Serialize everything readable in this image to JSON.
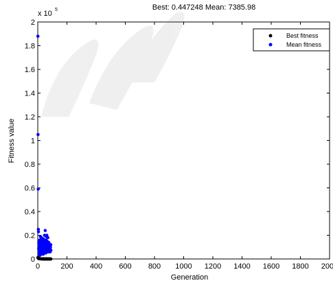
{
  "chart_data": {
    "type": "scatter",
    "title": "Best: 0.447248 Mean: 7385.98",
    "xlabel": "Generation",
    "ylabel": "Fitness value",
    "y_multiplier": "x 10",
    "y_exponent": "5",
    "xlim": [
      0,
      2000
    ],
    "ylim": [
      0,
      200000
    ],
    "x_ticks": [
      "0",
      "200",
      "400",
      "600",
      "800",
      "1000",
      "1200",
      "1400",
      "1600",
      "1800",
      "2000"
    ],
    "y_ticks": [
      "0",
      "0.2",
      "0.4",
      "0.6",
      "0.8",
      "1",
      "1.2",
      "1.4",
      "1.6",
      "1.8",
      "2"
    ],
    "legend": {
      "placement": "top-right"
    },
    "series": [
      {
        "name": "Best fitness",
        "color": "#000000",
        "x": [
          1,
          2,
          3,
          4,
          5,
          6,
          7,
          8,
          9,
          10,
          12,
          14,
          16,
          18,
          20,
          22,
          24,
          26,
          28,
          30,
          32,
          34,
          36,
          38,
          40,
          42,
          44,
          46,
          48,
          50,
          52,
          54,
          56,
          58,
          60,
          62,
          64,
          66,
          68,
          70,
          72,
          74,
          76,
          78,
          80,
          82,
          84,
          86,
          88,
          90
        ],
        "y": [
          1200,
          900,
          700,
          600,
          500,
          400,
          350,
          300,
          260,
          230,
          200,
          180,
          160,
          140,
          120,
          100,
          90,
          80,
          70,
          60,
          50,
          45,
          40,
          35,
          30,
          25,
          20,
          18,
          16,
          14,
          12,
          10,
          9,
          8,
          7,
          6,
          5,
          4,
          3,
          2.5,
          2,
          1.8,
          1.5,
          1.2,
          1,
          0.9,
          0.8,
          0.6,
          0.5,
          0.447
        ]
      },
      {
        "name": "Mean fitness",
        "color": "#0000ff",
        "x": [
          1,
          2,
          3,
          4,
          5,
          6,
          7,
          8,
          9,
          10,
          11,
          12,
          13,
          14,
          15,
          16,
          17,
          18,
          19,
          20,
          21,
          22,
          23,
          24,
          25,
          26,
          27,
          28,
          29,
          30,
          31,
          32,
          33,
          34,
          35,
          36,
          37,
          38,
          39,
          40,
          41,
          42,
          43,
          44,
          45,
          46,
          47,
          48,
          49,
          50,
          51,
          52,
          53,
          54,
          55,
          56,
          57,
          58,
          59,
          60,
          61,
          62,
          63,
          64,
          65,
          66,
          67,
          68,
          69,
          70,
          71,
          72,
          73,
          74,
          75,
          76,
          77,
          78,
          79,
          80,
          81,
          82,
          83,
          84,
          85,
          86,
          87,
          88,
          89,
          90
        ],
        "y": [
          188000,
          105000,
          59000,
          25000,
          23000,
          9000,
          14000,
          6000,
          11000,
          4000,
          12000,
          7000,
          16000,
          3000,
          9000,
          13000,
          5000,
          19000,
          8000,
          10000,
          6000,
          15000,
          12000,
          4000,
          18000,
          9000,
          7000,
          14000,
          11000,
          5000,
          16000,
          8000,
          13000,
          6000,
          10000,
          12000,
          4000,
          17000,
          9000,
          7000,
          15000,
          11000,
          5000,
          13000,
          8000,
          20000,
          10000,
          6000,
          12000,
          9000,
          24000,
          7000,
          14000,
          11000,
          5000,
          16000,
          8000,
          19000,
          6000,
          12000,
          10000,
          20000,
          7000,
          15000,
          9000,
          13000,
          11000,
          6000,
          18000,
          8000,
          12000,
          10000,
          9000,
          7000,
          14000,
          11000,
          6000,
          13000,
          8000,
          12000,
          10000,
          7000,
          9000,
          11000,
          6000,
          8000,
          10000,
          7000,
          12000,
          7386
        ]
      }
    ]
  }
}
